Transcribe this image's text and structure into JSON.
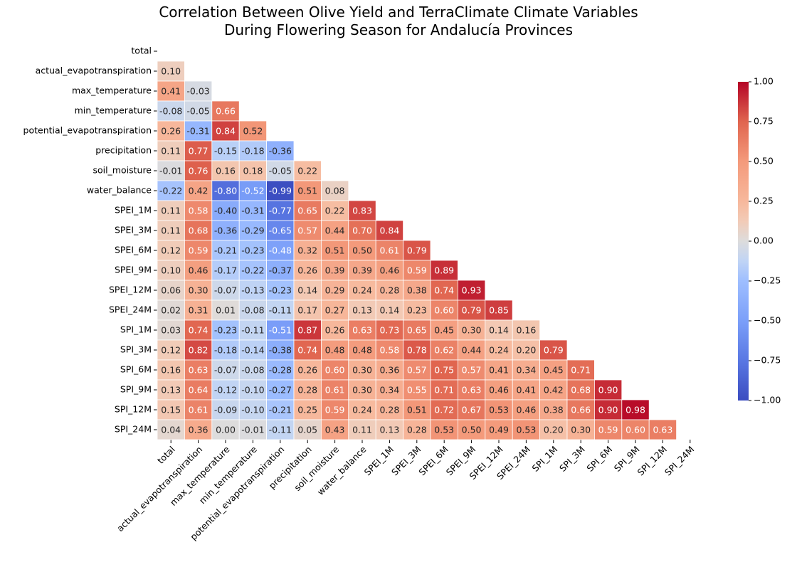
{
  "chart_data": {
    "type": "heatmap",
    "title": "Correlation Between Olive Yield and TerraClimate Climate Variables\nDuring Flowering Season for Andalucía Provinces",
    "categories": [
      "total",
      "actual_evapotranspiration",
      "max_temperature",
      "min_temperature",
      "potential_evapotranspiration",
      "precipitation",
      "soil_moisture",
      "water_balance",
      "SPEI_1M",
      "SPEI_3M",
      "SPEI_6M",
      "SPEI_9M",
      "SPEI_12M",
      "SPEI_24M",
      "SPI_1M",
      "SPI_3M",
      "SPI_6M",
      "SPI_9M",
      "SPI_12M",
      "SPI_24M"
    ],
    "values": [
      [],
      [
        0.1
      ],
      [
        0.41,
        -0.03
      ],
      [
        -0.08,
        -0.05,
        0.66
      ],
      [
        0.26,
        -0.31,
        0.84,
        0.52
      ],
      [
        0.11,
        0.77,
        -0.15,
        -0.18,
        -0.36
      ],
      [
        -0.01,
        0.76,
        0.16,
        0.18,
        -0.05,
        0.22
      ],
      [
        -0.22,
        0.42,
        -0.8,
        -0.52,
        -0.99,
        0.51,
        0.08
      ],
      [
        0.11,
        0.58,
        -0.4,
        -0.31,
        -0.77,
        0.65,
        0.22,
        0.83
      ],
      [
        0.11,
        0.68,
        -0.36,
        -0.29,
        -0.65,
        0.57,
        0.44,
        0.7,
        0.84
      ],
      [
        0.12,
        0.59,
        -0.21,
        -0.23,
        -0.48,
        0.32,
        0.51,
        0.5,
        0.61,
        0.79
      ],
      [
        0.1,
        0.46,
        -0.17,
        -0.22,
        -0.37,
        0.26,
        0.39,
        0.39,
        0.46,
        0.59,
        0.89
      ],
      [
        0.06,
        0.3,
        -0.07,
        -0.13,
        -0.23,
        0.14,
        0.29,
        0.24,
        0.28,
        0.38,
        0.74,
        0.93
      ],
      [
        0.02,
        0.31,
        0.01,
        -0.08,
        -0.11,
        0.17,
        0.27,
        0.13,
        0.14,
        0.23,
        0.6,
        0.79,
        0.85
      ],
      [
        0.03,
        0.74,
        -0.23,
        -0.11,
        -0.51,
        0.87,
        0.26,
        0.63,
        0.73,
        0.65,
        0.45,
        0.3,
        0.14,
        0.16
      ],
      [
        0.12,
        0.82,
        -0.18,
        -0.14,
        -0.38,
        0.74,
        0.48,
        0.48,
        0.58,
        0.78,
        0.62,
        0.44,
        0.24,
        0.2,
        0.79
      ],
      [
        0.16,
        0.63,
        -0.07,
        -0.08,
        -0.28,
        0.26,
        0.6,
        0.3,
        0.36,
        0.57,
        0.75,
        0.57,
        0.41,
        0.34,
        0.45,
        0.71
      ],
      [
        0.13,
        0.64,
        -0.12,
        -0.1,
        -0.27,
        0.28,
        0.61,
        0.3,
        0.34,
        0.55,
        0.71,
        0.63,
        0.46,
        0.41,
        0.42,
        0.68,
        0.9
      ],
      [
        0.15,
        0.61,
        -0.09,
        -0.1,
        -0.21,
        0.25,
        0.59,
        0.24,
        0.28,
        0.51,
        0.72,
        0.67,
        0.53,
        0.46,
        0.38,
        0.66,
        0.9,
        0.98
      ],
      [
        0.04,
        0.36,
        0.0,
        -0.01,
        -0.11,
        0.05,
        0.43,
        0.11,
        0.13,
        0.28,
        0.53,
        0.5,
        0.49,
        0.53,
        0.2,
        0.3,
        0.59,
        0.6,
        0.63
      ]
    ],
    "value_labels": [
      [],
      [
        "0.10"
      ],
      [
        "0.41",
        "-0.03"
      ],
      [
        "-0.08",
        "-0.05",
        "0.66"
      ],
      [
        "0.26",
        "-0.31",
        "0.84",
        "0.52"
      ],
      [
        "0.11",
        "0.77",
        "-0.15",
        "-0.18",
        "-0.36"
      ],
      [
        "-0.01",
        "0.76",
        "0.16",
        "0.18",
        "-0.05",
        "0.22"
      ],
      [
        "-0.22",
        "0.42",
        "-0.80",
        "-0.52",
        "-0.99",
        "0.51",
        "0.08"
      ],
      [
        "0.11",
        "0.58",
        "-0.40",
        "-0.31",
        "-0.77",
        "0.65",
        "0.22",
        "0.83"
      ],
      [
        "0.11",
        "0.68",
        "-0.36",
        "-0.29",
        "-0.65",
        "0.57",
        "0.44",
        "0.70",
        "0.84"
      ],
      [
        "0.12",
        "0.59",
        "-0.21",
        "-0.23",
        "-0.48",
        "0.32",
        "0.51",
        "0.50",
        "0.61",
        "0.79"
      ],
      [
        "0.10",
        "0.46",
        "-0.17",
        "-0.22",
        "-0.37",
        "0.26",
        "0.39",
        "0.39",
        "0.46",
        "0.59",
        "0.89"
      ],
      [
        "0.06",
        "0.30",
        "-0.07",
        "-0.13",
        "-0.23",
        "0.14",
        "0.29",
        "0.24",
        "0.28",
        "0.38",
        "0.74",
        "0.93"
      ],
      [
        "0.02",
        "0.31",
        "0.01",
        "-0.08",
        "-0.11",
        "0.17",
        "0.27",
        "0.13",
        "0.14",
        "0.23",
        "0.60",
        "0.79",
        "0.85"
      ],
      [
        "0.03",
        "0.74",
        "-0.23",
        "-0.11",
        "-0.51",
        "0.87",
        "0.26",
        "0.63",
        "0.73",
        "0.65",
        "0.45",
        "0.30",
        "0.14",
        "0.16"
      ],
      [
        "0.12",
        "0.82",
        "-0.18",
        "-0.14",
        "-0.38",
        "0.74",
        "0.48",
        "0.48",
        "0.58",
        "0.78",
        "0.62",
        "0.44",
        "0.24",
        "0.20",
        "0.79"
      ],
      [
        "0.16",
        "0.63",
        "-0.07",
        "-0.08",
        "-0.28",
        "0.26",
        "0.60",
        "0.30",
        "0.36",
        "0.57",
        "0.75",
        "0.57",
        "0.41",
        "0.34",
        "0.45",
        "0.71"
      ],
      [
        "0.13",
        "0.64",
        "-0.12",
        "-0.10",
        "-0.27",
        "0.28",
        "0.61",
        "0.30",
        "0.34",
        "0.55",
        "0.71",
        "0.63",
        "0.46",
        "0.41",
        "0.42",
        "0.68",
        "0.90"
      ],
      [
        "0.15",
        "0.61",
        "-0.09",
        "-0.10",
        "-0.21",
        "0.25",
        "0.59",
        "0.24",
        "0.28",
        "0.51",
        "0.72",
        "0.67",
        "0.53",
        "0.46",
        "0.38",
        "0.66",
        "0.90",
        "0.98"
      ],
      [
        "0.04",
        "0.36",
        "0.00",
        "-0.01",
        "-0.11",
        "0.05",
        "0.43",
        "0.11",
        "0.13",
        "0.28",
        "0.53",
        "0.50",
        "0.49",
        "0.53",
        "0.20",
        "0.30",
        "0.59",
        "0.60",
        "0.63"
      ]
    ],
    "colormap": "coolwarm",
    "clim": [
      -1,
      1
    ],
    "cticks": [
      {
        "value": -1,
        "label": "−1.00"
      },
      {
        "value": -0.75,
        "label": "−0.75"
      },
      {
        "value": -0.5,
        "label": "−0.50"
      },
      {
        "value": -0.25,
        "label": "−0.25"
      },
      {
        "value": 0,
        "label": "0.00"
      },
      {
        "value": 0.25,
        "label": "0.25"
      },
      {
        "value": 0.5,
        "label": "0.50"
      },
      {
        "value": 0.75,
        "label": "0.75"
      },
      {
        "value": 1,
        "label": "1.00"
      }
    ]
  }
}
